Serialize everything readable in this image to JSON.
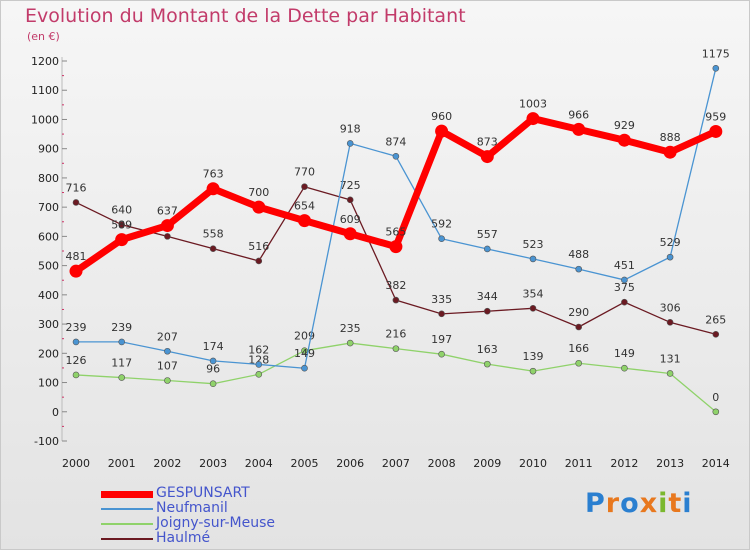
{
  "title": "Evolution du Montant de la Dette par Habitant",
  "subtitle": "(en €)",
  "logo_text": "Proxiti",
  "chart_data": {
    "type": "line",
    "x": [
      "2000",
      "2001",
      "2002",
      "2003",
      "2004",
      "2005",
      "2006",
      "2007",
      "2008",
      "2009",
      "2010",
      "2011",
      "2012",
      "2013",
      "2014"
    ],
    "ylim": [
      -100,
      1200
    ],
    "yticks": [
      -100,
      0,
      100,
      200,
      300,
      400,
      500,
      600,
      700,
      800,
      900,
      1000,
      1100,
      1200
    ],
    "legend_position": "bottom-left",
    "series": [
      {
        "name": "Haulmé",
        "color": "#6b1a22",
        "values": [
          716,
          640,
          600,
          558,
          516,
          770,
          725,
          382,
          335,
          344,
          354,
          290,
          375,
          306,
          265
        ],
        "labels": [
          "716",
          "640",
          "",
          "558",
          "516",
          "770",
          "725",
          "382",
          "335",
          "344",
          "354",
          "290",
          "375",
          "306",
          "265"
        ]
      },
      {
        "name": "Joigny-sur-Meuse",
        "color": "#8fd26a",
        "values": [
          126,
          117,
          107,
          96,
          128,
          209,
          235,
          216,
          197,
          163,
          139,
          166,
          149,
          131,
          0
        ],
        "labels": [
          "126",
          "117",
          "107",
          "96",
          "128",
          "209",
          "235",
          "216",
          "197",
          "163",
          "139",
          "166",
          "149",
          "131",
          "0"
        ]
      },
      {
        "name": "Neufmanil",
        "color": "#4a94d2",
        "values": [
          239,
          239,
          207,
          174,
          162,
          149,
          918,
          874,
          592,
          557,
          523,
          488,
          451,
          529,
          1175
        ],
        "labels": [
          "239",
          "239",
          "207",
          "174",
          "162",
          "149",
          "918",
          "874",
          "592",
          "557",
          "523",
          "488",
          "451",
          "529",
          "1175"
        ]
      },
      {
        "name": "GESPUNSART",
        "color": "#ff0000",
        "values": [
          481,
          589,
          637,
          763,
          700,
          654,
          609,
          565,
          960,
          873,
          1003,
          966,
          929,
          888,
          959
        ],
        "labels": [
          "481",
          "589",
          "637",
          "763",
          "700",
          "654",
          "609",
          "565",
          "960",
          "873",
          "1003",
          "966",
          "929",
          "888",
          "959"
        ]
      }
    ]
  },
  "legend": [
    {
      "name": "GESPUNSART",
      "color": "#ff0000",
      "thickness": 7
    },
    {
      "name": "Neufmanil",
      "color": "#4a94d2",
      "thickness": 2
    },
    {
      "name": "Joigny-sur-Meuse",
      "color": "#8fd26a",
      "thickness": 2
    },
    {
      "name": "Haulmé",
      "color": "#6b1a22",
      "thickness": 2
    }
  ]
}
